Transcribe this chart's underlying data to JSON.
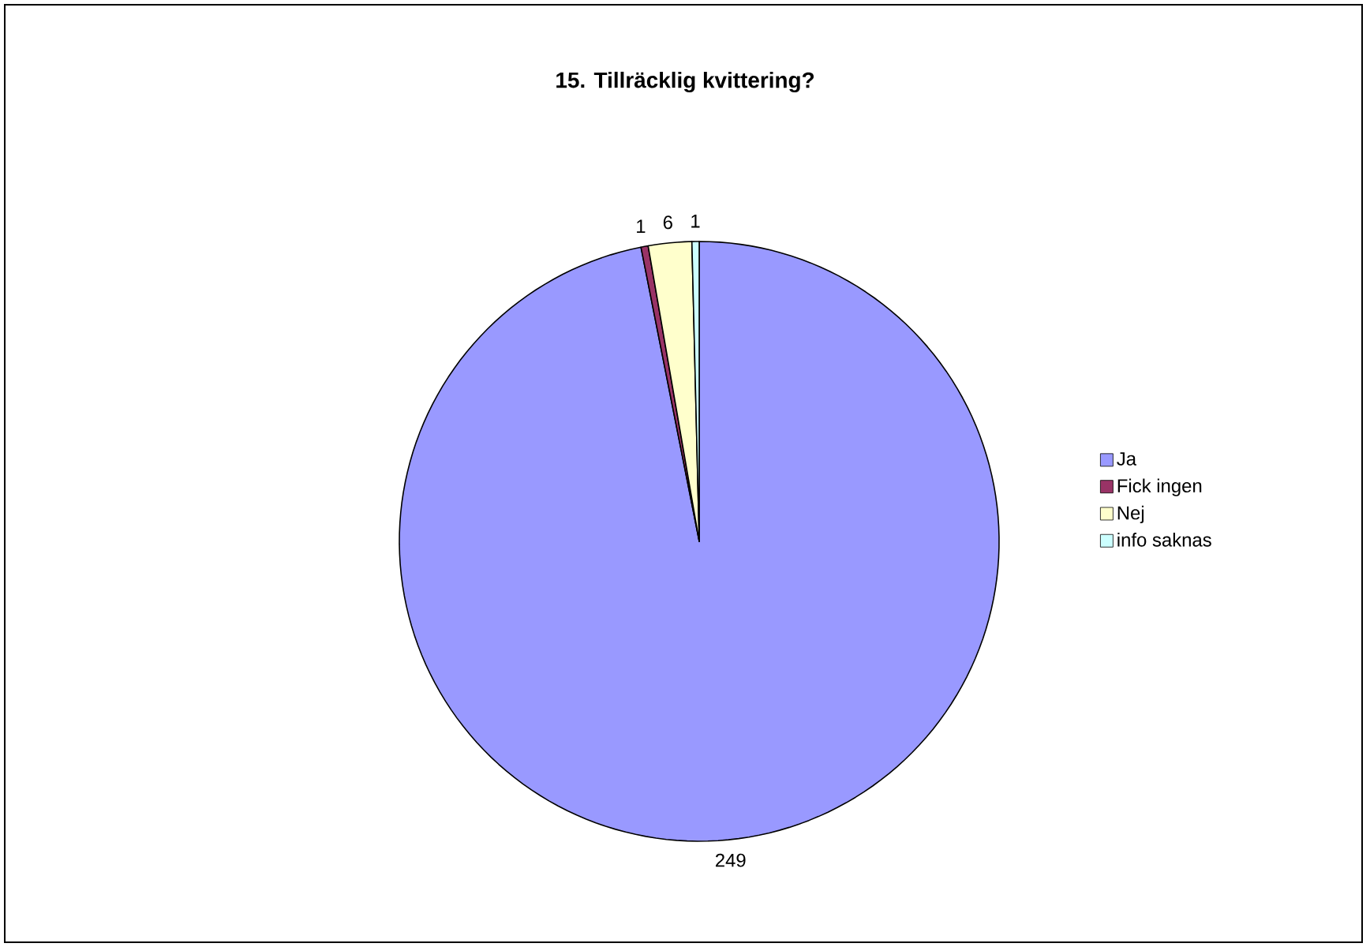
{
  "chart_data": {
    "type": "pie",
    "title": "15. Tillräcklig kvittering?",
    "categories": [
      "Ja",
      "Fick ingen",
      "Nej",
      "info saknas"
    ],
    "values": [
      249,
      1,
      6,
      1
    ],
    "colors": [
      "#9999ff",
      "#993366",
      "#ffffcc",
      "#ccffff"
    ],
    "data_labels": true,
    "legend": "right"
  }
}
